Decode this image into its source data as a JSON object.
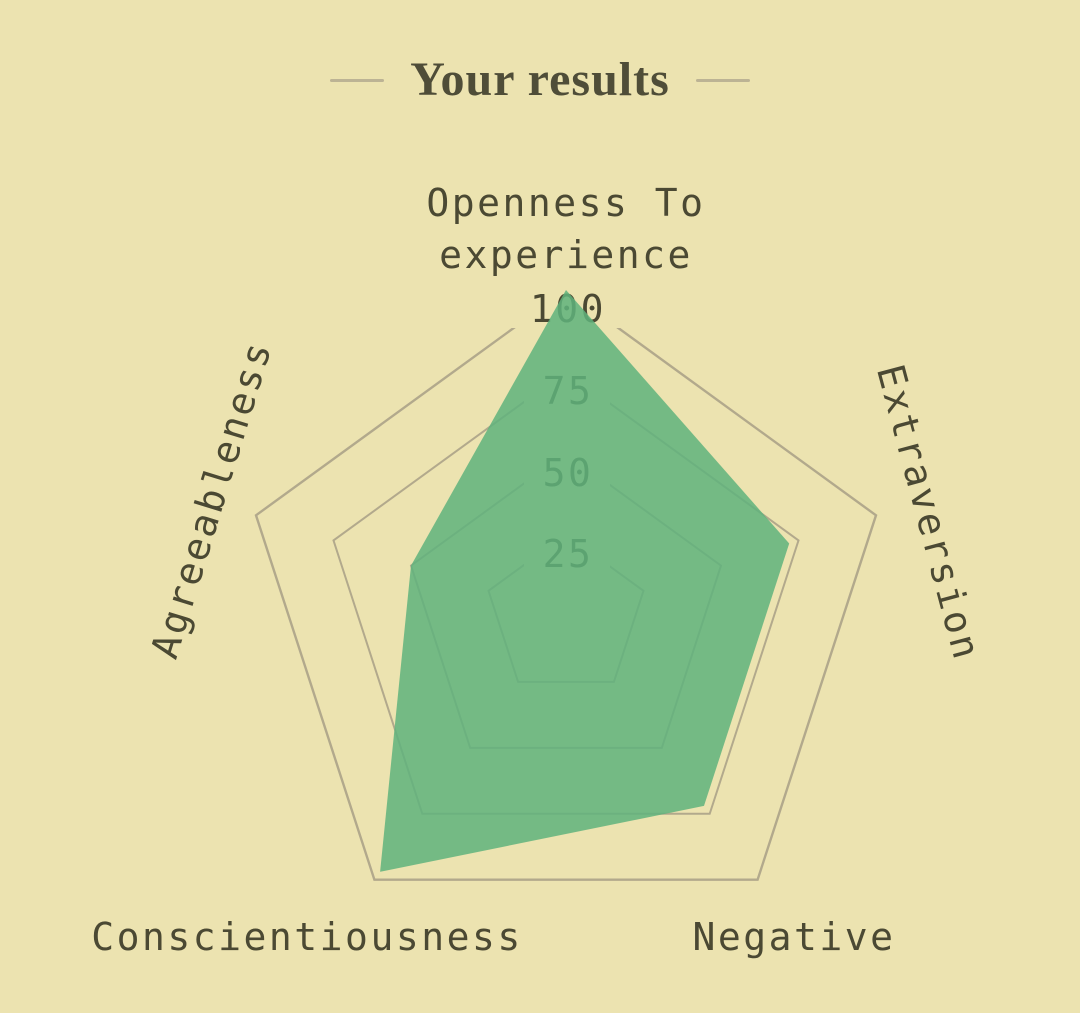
{
  "header": {
    "title": "Your results"
  },
  "chart_data": {
    "type": "radar",
    "title": "Your results",
    "categories": [
      "Openness To experience",
      "Extraversion",
      "Negative",
      "Conscientiousness",
      "Agreeableness"
    ],
    "series": [
      {
        "name": "Your results",
        "values": [
          100,
          72,
          72,
          97,
          50
        ]
      }
    ],
    "scale": {
      "min": 0,
      "max": 100,
      "ticks": [
        25,
        50,
        75,
        100
      ]
    },
    "tick_labels": [
      "100",
      "75",
      "50",
      "25"
    ],
    "axis_labels": {
      "openness_line1": "Openness To",
      "openness_line2": "experience",
      "extraversion": "Extraversion",
      "negative": "Negative",
      "conscientiousness": "Conscientiousness",
      "agreeableness": "Agreeableness"
    },
    "layout_hints": {
      "grid": "pentagon rings, no radial spokes",
      "legend": "none",
      "fill_over_labels": "semi-transparent fill drawn above tick labels"
    },
    "colors": {
      "background": "#ece3b0",
      "fill": "#5fb37c",
      "fill_opacity": 0.85,
      "grid_line": "#b2a98c",
      "text": "#4b4933",
      "title_text": "#4f4d38",
      "dash": "#bcb394"
    }
  }
}
